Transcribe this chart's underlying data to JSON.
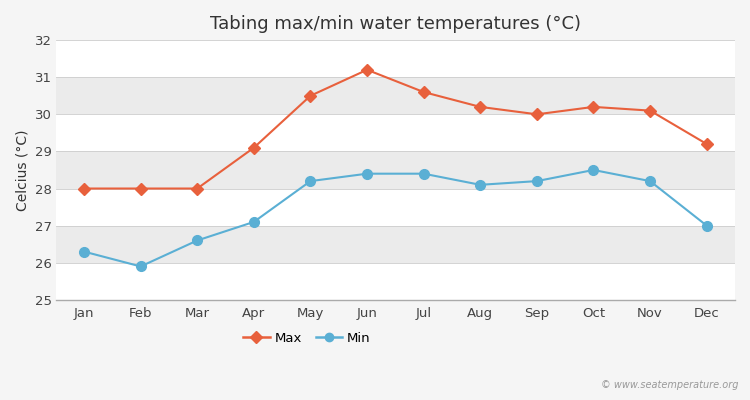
{
  "title": "Tabing max/min water temperatures (°C)",
  "ylabel": "Celcius (°C)",
  "months": [
    "Jan",
    "Feb",
    "Mar",
    "Apr",
    "May",
    "Jun",
    "Jul",
    "Aug",
    "Sep",
    "Oct",
    "Nov",
    "Dec"
  ],
  "max_values": [
    28.0,
    28.0,
    28.0,
    29.1,
    30.5,
    31.2,
    30.6,
    30.2,
    30.0,
    30.2,
    30.1,
    29.2
  ],
  "min_values": [
    26.3,
    25.9,
    26.6,
    27.1,
    28.2,
    28.4,
    28.4,
    28.1,
    28.2,
    28.5,
    28.2,
    27.0
  ],
  "max_color": "#e8603c",
  "min_color": "#5aafd4",
  "ylim": [
    25,
    32
  ],
  "yticks": [
    25,
    26,
    27,
    28,
    29,
    30,
    31,
    32
  ],
  "band_colors": [
    "#ffffff",
    "#ebebeb"
  ],
  "background_color": "#f5f5f5",
  "watermark": "© www.seatemperature.org",
  "title_fontsize": 13,
  "axis_label_fontsize": 10,
  "tick_fontsize": 9.5
}
